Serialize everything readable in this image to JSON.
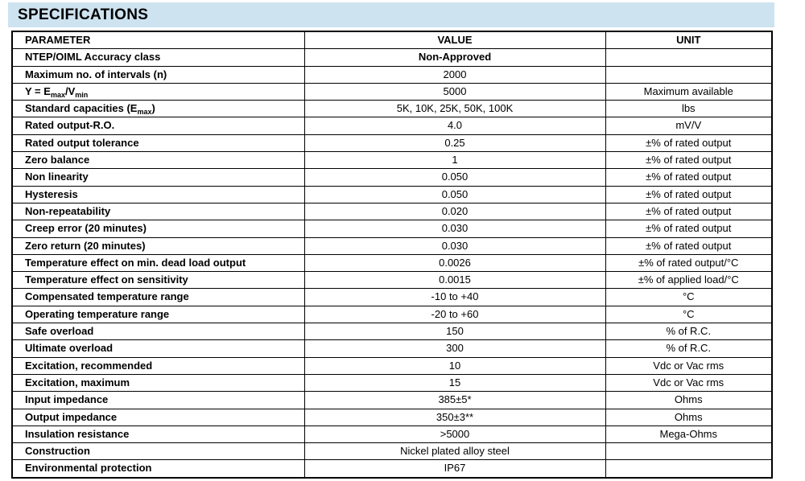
{
  "page": {
    "title": "SPECIFICATIONS"
  },
  "colors": {
    "title_bar_background": "#cee3f0",
    "table_border": "#000000",
    "text": "#000000"
  },
  "table": {
    "headers": [
      "PARAMETER",
      "VALUE",
      "UNIT"
    ],
    "rows": [
      {
        "param": "NTEP/OIML Accuracy class",
        "value": "Non-Approved",
        "unit": "",
        "value_bold": true
      },
      {
        "param": "Maximum no. of intervals (n)",
        "value": "2000",
        "unit": ""
      },
      {
        "param_parts": [
          {
            "t": "Y = E"
          },
          {
            "t": "max",
            "sub": true
          },
          {
            "t": "/V"
          },
          {
            "t": "min",
            "sub": true
          }
        ],
        "value": "5000",
        "unit": "Maximum available"
      },
      {
        "param_parts": [
          {
            "t": "Standard capacities (E"
          },
          {
            "t": "max",
            "sub": true
          },
          {
            "t": ")"
          }
        ],
        "value": "5K, 10K, 25K, 50K, 100K",
        "unit": "lbs"
      },
      {
        "param": "Rated output-R.O.",
        "value": "4.0",
        "unit": "mV/V"
      },
      {
        "param": "Rated output tolerance",
        "value": "0.25",
        "unit": "±% of rated output"
      },
      {
        "param": "Zero balance",
        "value": "1",
        "unit": "±% of rated output"
      },
      {
        "param": "Non linearity",
        "value": "0.050",
        "unit": "±% of rated output"
      },
      {
        "param": "Hysteresis",
        "value": "0.050",
        "unit": "±% of rated output"
      },
      {
        "param": "Non-repeatability",
        "value": "0.020",
        "unit": "±% of rated output"
      },
      {
        "param": "Creep error (20 minutes)",
        "value": "0.030",
        "unit": "±% of rated output"
      },
      {
        "param": "Zero return (20 minutes)",
        "value": "0.030",
        "unit": "±% of rated output"
      },
      {
        "param": "Temperature effect on min. dead load output",
        "value": "0.0026",
        "unit": "±% of rated output/°C"
      },
      {
        "param": "Temperature effect on sensitivity",
        "value": "0.0015",
        "unit": "±% of applied load/°C"
      },
      {
        "param": "Compensated temperature range",
        "value": "-10 to +40",
        "unit": "°C"
      },
      {
        "param": "Operating temperature range",
        "value": "-20 to +60",
        "unit": "°C"
      },
      {
        "param": "Safe overload",
        "value": "150",
        "unit": "% of R.C."
      },
      {
        "param": "Ultimate overload",
        "value": "300",
        "unit": "% of R.C."
      },
      {
        "param": "Excitation, recommended",
        "value": "10",
        "unit": "Vdc or Vac rms"
      },
      {
        "param": "Excitation, maximum",
        "value": "15",
        "unit": "Vdc or Vac rms"
      },
      {
        "param": "Input impedance",
        "value": "385±5*",
        "unit": "Ohms"
      },
      {
        "param": "Output impedance",
        "value": "350±3**",
        "unit": "Ohms"
      },
      {
        "param": "Insulation resistance",
        "value": ">5000",
        "unit": "Mega-Ohms"
      },
      {
        "param": "Construction",
        "value": "Nickel plated alloy steel",
        "unit": ""
      },
      {
        "param": "Environmental protection",
        "value": "IP67",
        "unit": ""
      }
    ]
  }
}
